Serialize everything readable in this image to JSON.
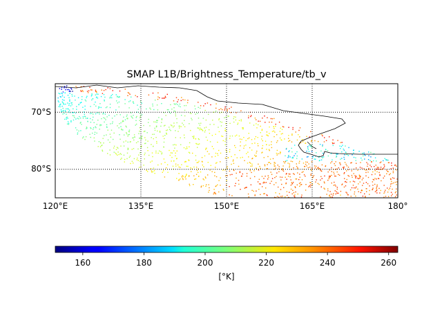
{
  "title": "SMAP L1B/Brightness_Temperature/tb_v",
  "chart_data": {
    "type": "scatter",
    "title": "SMAP L1B/Brightness_Temperature/tb_v",
    "projection": "cylindrical map",
    "x": {
      "range": [
        120,
        180
      ],
      "ticks": [
        120,
        135,
        150,
        165,
        180
      ],
      "tick_labels": [
        "120°E",
        "135°E",
        "150°E",
        "165°E",
        "180°"
      ],
      "grid": "dotted"
    },
    "y": {
      "range": [
        -85,
        -65
      ],
      "ticks": [
        -70,
        -80
      ],
      "tick_labels": [
        "70°S",
        "80°S"
      ],
      "grid": "dotted"
    },
    "colorbar": {
      "colormap": "jet",
      "range": [
        151,
        263
      ],
      "ticks": [
        160,
        180,
        200,
        220,
        240,
        260
      ],
      "tick_labels": [
        "160",
        "180",
        "200",
        "220",
        "240",
        "260"
      ],
      "label": "[°K]",
      "orientation": "horizontal"
    },
    "swath_summary": [
      {
        "region": "near 120°E–140°E, 69°S–75°S",
        "tb_v": 205
      },
      {
        "region": "near 125°E–145°E, 75°S–82°S",
        "tb_v": 215
      },
      {
        "region": "near 150°E–180°E, 80°S–85°S",
        "tb_v": 235
      },
      {
        "region": "near 160°E–180°E, 75°S–78°S",
        "tb_v": 185
      },
      {
        "region": "near 120°E, 66°S",
        "tb_v": 160
      }
    ]
  }
}
